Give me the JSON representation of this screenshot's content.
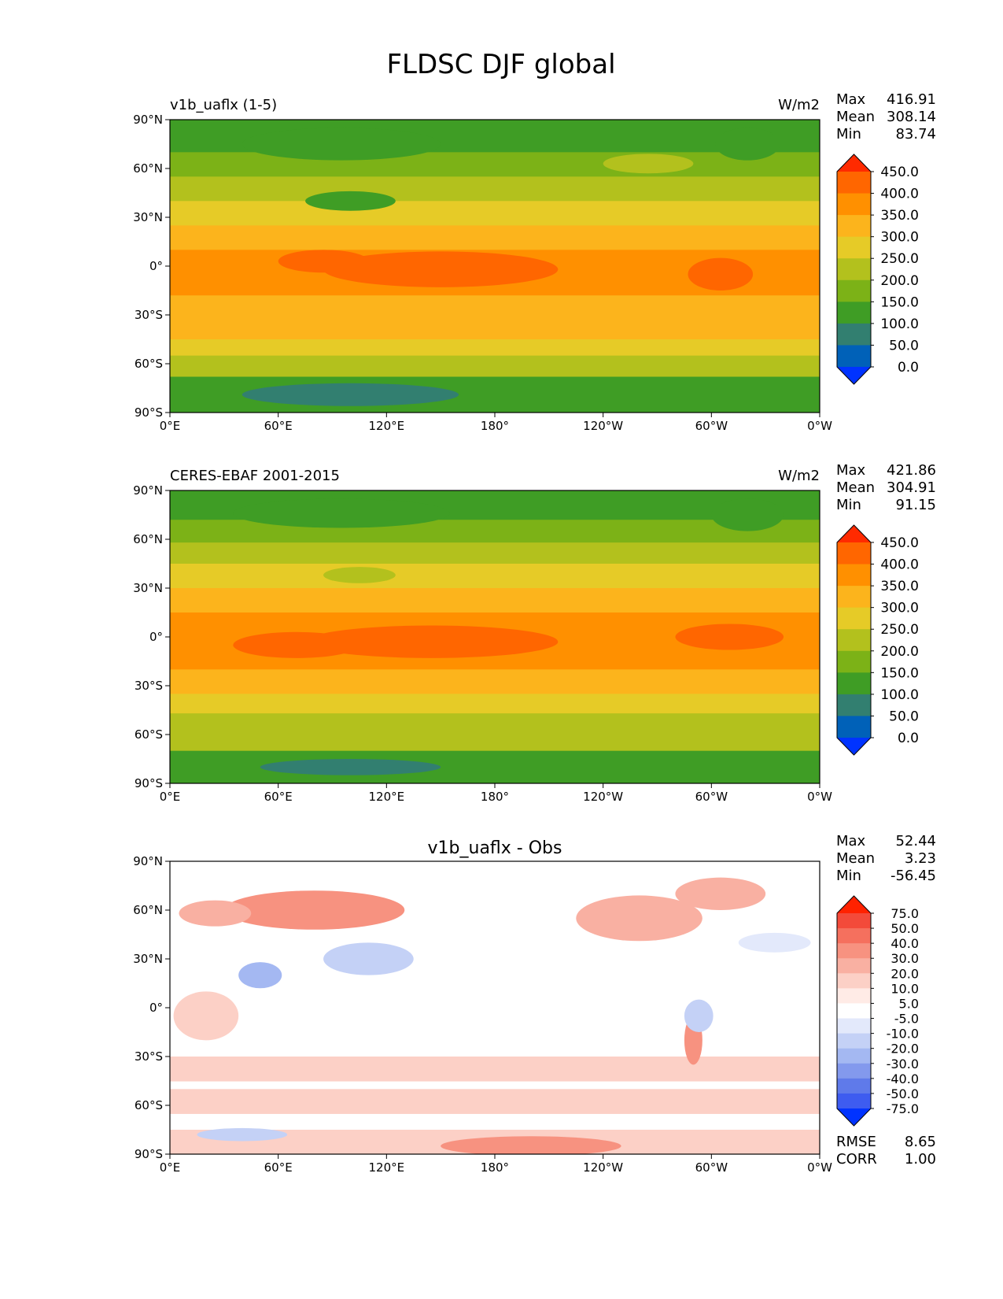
{
  "figure": {
    "title": "FLDSC DJF global"
  },
  "chart_data": [
    {
      "type": "heatmap",
      "panel_title_left": "v1b_uaflx (1-5)",
      "panel_title_center": "",
      "units": "W/m2",
      "stats": [
        {
          "label": "Max",
          "value": "416.91"
        },
        {
          "label": "Mean",
          "value": "308.14"
        },
        {
          "label": "Min",
          "value": "83.74"
        }
      ],
      "extra_stats": [],
      "xticks": [
        "0°E",
        "60°E",
        "120°E",
        "180°",
        "120°W",
        "60°W",
        "0°W"
      ],
      "yticks": [
        "90°N",
        "60°N",
        "30°N",
        "0°",
        "30°S",
        "60°S",
        "90°S"
      ],
      "xlim": [
        0,
        360
      ],
      "ylim": [
        -90,
        90
      ],
      "colorbar": {
        "levels": [
          "450.0",
          "400.0",
          "350.0",
          "300.0",
          "250.0",
          "200.0",
          "150.0",
          "100.0",
          "50.0",
          "0.0"
        ],
        "colors": [
          "#ff2a00",
          "#ff6600",
          "#ff9000",
          "#fcb41c",
          "#e6cb27",
          "#b3c11d",
          "#7cb217",
          "#3f9d25",
          "#327f70",
          "#0061b8",
          "#0033ff"
        ]
      },
      "bands": [
        {
          "lat": [
            70,
            90
          ],
          "color": "#3f9d25"
        },
        {
          "lat": [
            55,
            70
          ],
          "color": "#7cb217"
        },
        {
          "lat": [
            40,
            55
          ],
          "color": "#b3c11d"
        },
        {
          "lat": [
            25,
            40
          ],
          "color": "#e6cb27"
        },
        {
          "lat": [
            10,
            25
          ],
          "color": "#fcb41c"
        },
        {
          "lat": [
            -18,
            10
          ],
          "color": "#ff9000"
        },
        {
          "lat": [
            -32,
            -18
          ],
          "color": "#fcb41c"
        },
        {
          "lat": [
            -45,
            -32
          ],
          "color": "#fcb41c"
        },
        {
          "lat": [
            -55,
            -45
          ],
          "color": "#e6cb27"
        },
        {
          "lat": [
            -68,
            -55
          ],
          "color": "#b3c11d"
        },
        {
          "lat": [
            -90,
            -68
          ],
          "color": "#3f9d25"
        }
      ],
      "blobs": [
        {
          "lon": 150,
          "lat": -2,
          "rlon": 65,
          "rlat": 11,
          "color": "#ff6600"
        },
        {
          "lon": 85,
          "lat": 3,
          "rlon": 25,
          "rlat": 7,
          "color": "#ff6600"
        },
        {
          "lon": 305,
          "lat": -5,
          "rlon": 18,
          "rlat": 10,
          "color": "#ff6600"
        },
        {
          "lon": 95,
          "lat": 75,
          "rlon": 55,
          "rlat": 10,
          "color": "#3f9d25"
        },
        {
          "lon": 100,
          "lat": 40,
          "rlon": 25,
          "rlat": 6,
          "color": "#3f9d25"
        },
        {
          "lon": 320,
          "lat": 75,
          "rlon": 18,
          "rlat": 10,
          "color": "#3f9d25"
        },
        {
          "lon": 100,
          "lat": -79,
          "rlon": 60,
          "rlat": 7,
          "color": "#327f70"
        },
        {
          "lon": 265,
          "lat": 63,
          "rlon": 25,
          "rlat": 6,
          "color": "#b3c11d"
        }
      ]
    },
    {
      "type": "heatmap",
      "panel_title_left": "CERES-EBAF 2001-2015",
      "panel_title_center": "",
      "units": "W/m2",
      "stats": [
        {
          "label": "Max",
          "value": "421.86"
        },
        {
          "label": "Mean",
          "value": "304.91"
        },
        {
          "label": "Min",
          "value": "91.15"
        }
      ],
      "extra_stats": [],
      "xticks": [
        "0°E",
        "60°E",
        "120°E",
        "180°",
        "120°W",
        "60°W",
        "0°W"
      ],
      "yticks": [
        "90°N",
        "60°N",
        "30°N",
        "0°",
        "30°S",
        "60°S",
        "90°S"
      ],
      "xlim": [
        0,
        360
      ],
      "ylim": [
        -90,
        90
      ],
      "colorbar": {
        "levels": [
          "450.0",
          "400.0",
          "350.0",
          "300.0",
          "250.0",
          "200.0",
          "150.0",
          "100.0",
          "50.0",
          "0.0"
        ],
        "colors": [
          "#ff2a00",
          "#ff6600",
          "#ff9000",
          "#fcb41c",
          "#e6cb27",
          "#b3c11d",
          "#7cb217",
          "#3f9d25",
          "#327f70",
          "#0061b8",
          "#0033ff"
        ]
      },
      "bands": [
        {
          "lat": [
            72,
            90
          ],
          "color": "#3f9d25"
        },
        {
          "lat": [
            58,
            72
          ],
          "color": "#7cb217"
        },
        {
          "lat": [
            45,
            58
          ],
          "color": "#b3c11d"
        },
        {
          "lat": [
            30,
            45
          ],
          "color": "#e6cb27"
        },
        {
          "lat": [
            15,
            30
          ],
          "color": "#fcb41c"
        },
        {
          "lat": [
            -20,
            15
          ],
          "color": "#ff9000"
        },
        {
          "lat": [
            -35,
            -20
          ],
          "color": "#fcb41c"
        },
        {
          "lat": [
            -47,
            -35
          ],
          "color": "#e6cb27"
        },
        {
          "lat": [
            -70,
            -47
          ],
          "color": "#b3c11d"
        },
        {
          "lat": [
            -90,
            -70
          ],
          "color": "#3f9d25"
        }
      ],
      "blobs": [
        {
          "lon": 145,
          "lat": -3,
          "rlon": 70,
          "rlat": 10,
          "color": "#ff6600"
        },
        {
          "lon": 70,
          "lat": -5,
          "rlon": 35,
          "rlat": 8,
          "color": "#ff6600"
        },
        {
          "lon": 310,
          "lat": 0,
          "rlon": 30,
          "rlat": 8,
          "color": "#ff6600"
        },
        {
          "lon": 95,
          "lat": 76,
          "rlon": 60,
          "rlat": 9,
          "color": "#3f9d25"
        },
        {
          "lon": 320,
          "lat": 75,
          "rlon": 20,
          "rlat": 10,
          "color": "#3f9d25"
        },
        {
          "lon": 100,
          "lat": -80,
          "rlon": 50,
          "rlat": 5,
          "color": "#327f70"
        },
        {
          "lon": 105,
          "lat": 38,
          "rlon": 20,
          "rlat": 5,
          "color": "#b3c11d"
        }
      ]
    },
    {
      "type": "heatmap",
      "panel_title_left": "",
      "panel_title_center": "v1b_uaflx - Obs",
      "units": "",
      "stats": [
        {
          "label": "Max",
          "value": "52.44"
        },
        {
          "label": "Mean",
          "value": "3.23"
        },
        {
          "label": "Min",
          "value": "-56.45"
        }
      ],
      "extra_stats": [
        {
          "label": "RMSE",
          "value": "8.65"
        },
        {
          "label": "CORR",
          "value": "1.00"
        }
      ],
      "xticks": [
        "0°E",
        "60°E",
        "120°E",
        "180°",
        "120°W",
        "60°W",
        "0°W"
      ],
      "yticks": [
        "90°N",
        "60°N",
        "30°N",
        "0°",
        "30°S",
        "60°S",
        "90°S"
      ],
      "xlim": [
        0,
        360
      ],
      "ylim": [
        -90,
        90
      ],
      "colorbar": {
        "levels": [
          "75.0",
          "50.0",
          "40.0",
          "30.0",
          "20.0",
          "10.0",
          "5.0",
          "-5.0",
          "-10.0",
          "-20.0",
          "-30.0",
          "-40.0",
          "-50.0",
          "-75.0"
        ],
        "colors": [
          "#ff2200",
          "#f34a3a",
          "#f5705e",
          "#f79280",
          "#f9b0a2",
          "#fcd0c6",
          "#ffebe6",
          "#ffffff",
          "#e3e9fb",
          "#c4d1f6",
          "#a4b8f2",
          "#8399ed",
          "#5f7aea",
          "#3e5cf0",
          "#0033ff"
        ]
      },
      "bands": [
        {
          "lat": [
            -45,
            -30
          ],
          "color": "#fcd0c6"
        },
        {
          "lat": [
            -65,
            -50
          ],
          "color": "#fcd0c6"
        },
        {
          "lat": [
            -90,
            -75
          ],
          "color": "#fcd0c6"
        }
      ],
      "blobs": [
        {
          "lon": 80,
          "lat": 60,
          "rlon": 50,
          "rlat": 12,
          "color": "#f79280"
        },
        {
          "lon": 25,
          "lat": 58,
          "rlon": 20,
          "rlat": 8,
          "color": "#f9b0a2"
        },
        {
          "lon": 110,
          "lat": 30,
          "rlon": 25,
          "rlat": 10,
          "color": "#c4d1f6"
        },
        {
          "lon": 50,
          "lat": 20,
          "rlon": 12,
          "rlat": 8,
          "color": "#a4b8f2"
        },
        {
          "lon": 260,
          "lat": 55,
          "rlon": 35,
          "rlat": 14,
          "color": "#f9b0a2"
        },
        {
          "lon": 305,
          "lat": 70,
          "rlon": 25,
          "rlat": 10,
          "color": "#f9b0a2"
        },
        {
          "lon": 200,
          "lat": -85,
          "rlon": 50,
          "rlat": 6,
          "color": "#f79280"
        },
        {
          "lon": 40,
          "lat": -78,
          "rlon": 25,
          "rlat": 4,
          "color": "#c4d1f6"
        },
        {
          "lon": 290,
          "lat": -20,
          "rlon": 5,
          "rlat": 15,
          "color": "#f79280"
        },
        {
          "lon": 293,
          "lat": -5,
          "rlon": 8,
          "rlat": 10,
          "color": "#c4d1f6"
        },
        {
          "lon": 335,
          "lat": 40,
          "rlon": 20,
          "rlat": 6,
          "color": "#e3e9fb"
        },
        {
          "lon": 20,
          "lat": -5,
          "rlon": 18,
          "rlat": 15,
          "color": "#fcd0c6"
        }
      ]
    }
  ]
}
